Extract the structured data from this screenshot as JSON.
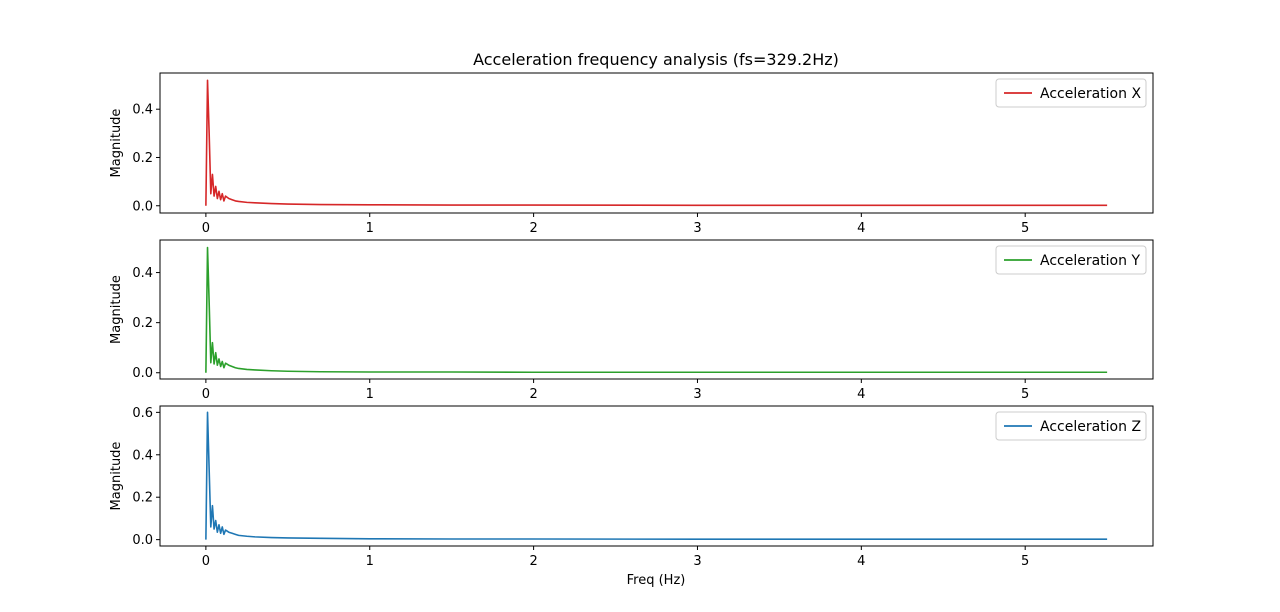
{
  "figure": {
    "title": "Acceleration frequency analysis (fs=329.2Hz)",
    "xlabel": "Freq (Hz)",
    "background": "#ffffff"
  },
  "chart_data": [
    {
      "type": "line",
      "series": [
        {
          "name": "Acceleration X",
          "color": "#d62728",
          "x": [
            0.0,
            0.01,
            0.02,
            0.03,
            0.04,
            0.05,
            0.06,
            0.07,
            0.08,
            0.09,
            0.1,
            0.11,
            0.12,
            0.14,
            0.16,
            0.18,
            0.2,
            0.25,
            0.3,
            0.4,
            0.5,
            0.7,
            1.0,
            1.5,
            2.0,
            3.0,
            4.0,
            5.0,
            5.5
          ],
          "y": [
            0.0,
            0.52,
            0.3,
            0.05,
            0.13,
            0.04,
            0.08,
            0.03,
            0.06,
            0.025,
            0.05,
            0.02,
            0.04,
            0.03,
            0.025,
            0.02,
            0.018,
            0.014,
            0.012,
            0.009,
            0.007,
            0.005,
            0.004,
            0.003,
            0.003,
            0.002,
            0.002,
            0.002,
            0.002
          ]
        }
      ],
      "xlim": [
        -0.28,
        5.78
      ],
      "ylim": [
        -0.03,
        0.55
      ],
      "xticks": [
        0,
        1,
        2,
        3,
        4,
        5
      ],
      "yticks": [
        0.0,
        0.2,
        0.4
      ],
      "ytick_labels": [
        "0.0",
        "0.2",
        "0.4"
      ],
      "ylabel": "Magnitude",
      "legend": "top-right"
    },
    {
      "type": "line",
      "series": [
        {
          "name": "Acceleration Y",
          "color": "#2ca02c",
          "x": [
            0.0,
            0.01,
            0.02,
            0.03,
            0.04,
            0.05,
            0.06,
            0.07,
            0.08,
            0.09,
            0.1,
            0.11,
            0.12,
            0.14,
            0.16,
            0.18,
            0.2,
            0.25,
            0.3,
            0.4,
            0.5,
            0.7,
            1.0,
            1.5,
            2.0,
            3.0,
            4.0,
            5.0,
            5.5
          ],
          "y": [
            0.0,
            0.5,
            0.28,
            0.04,
            0.12,
            0.035,
            0.08,
            0.03,
            0.055,
            0.025,
            0.045,
            0.02,
            0.038,
            0.03,
            0.025,
            0.02,
            0.017,
            0.013,
            0.011,
            0.008,
            0.006,
            0.004,
            0.003,
            0.003,
            0.002,
            0.002,
            0.002,
            0.002,
            0.002
          ]
        }
      ],
      "xlim": [
        -0.28,
        5.78
      ],
      "ylim": [
        -0.025,
        0.53
      ],
      "xticks": [
        0,
        1,
        2,
        3,
        4,
        5
      ],
      "yticks": [
        0.0,
        0.2,
        0.4
      ],
      "ytick_labels": [
        "0.0",
        "0.2",
        "0.4"
      ],
      "ylabel": "Magnitude",
      "legend": "top-right"
    },
    {
      "type": "line",
      "series": [
        {
          "name": "Acceleration Z",
          "color": "#1f77b4",
          "x": [
            0.0,
            0.01,
            0.02,
            0.03,
            0.04,
            0.05,
            0.06,
            0.07,
            0.08,
            0.09,
            0.1,
            0.11,
            0.12,
            0.14,
            0.16,
            0.18,
            0.2,
            0.25,
            0.3,
            0.4,
            0.5,
            0.7,
            1.0,
            1.5,
            2.0,
            3.0,
            4.0,
            5.0,
            5.5
          ],
          "y": [
            0.0,
            0.6,
            0.33,
            0.06,
            0.16,
            0.05,
            0.09,
            0.035,
            0.07,
            0.03,
            0.06,
            0.025,
            0.045,
            0.035,
            0.03,
            0.025,
            0.02,
            0.016,
            0.013,
            0.01,
            0.008,
            0.006,
            0.004,
            0.003,
            0.003,
            0.002,
            0.002,
            0.002,
            0.002
          ]
        }
      ],
      "xlim": [
        -0.28,
        5.78
      ],
      "ylim": [
        -0.03,
        0.63
      ],
      "xticks": [
        0,
        1,
        2,
        3,
        4,
        5
      ],
      "yticks": [
        0.0,
        0.2,
        0.4,
        0.6
      ],
      "ytick_labels": [
        "0.0",
        "0.2",
        "0.4",
        "0.6"
      ],
      "ylabel": "Magnitude",
      "legend": "top-right"
    }
  ]
}
